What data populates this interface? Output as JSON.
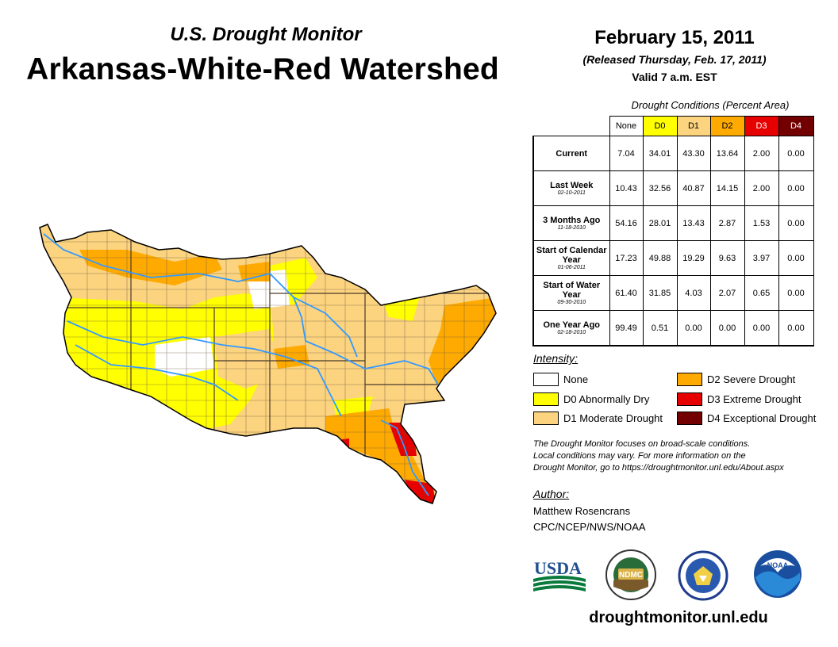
{
  "header": {
    "subtitle": "U.S. Drought Monitor",
    "title": "Arkansas-White-Red Watershed",
    "date": "February 15, 2011",
    "released": "(Released Thursday, Feb. 17, 2011)",
    "valid": "Valid 7 a.m. EST"
  },
  "table": {
    "caption": "Drought Conditions (Percent Area)",
    "columns": [
      "None",
      "D0",
      "D1",
      "D2",
      "D3",
      "D4"
    ],
    "rows": [
      {
        "label": "Current",
        "date": "",
        "values": [
          "7.04",
          "34.01",
          "43.30",
          "13.64",
          "2.00",
          "0.00"
        ]
      },
      {
        "label": "Last Week",
        "date": "02-10-2011",
        "values": [
          "10.43",
          "32.56",
          "40.87",
          "14.15",
          "2.00",
          "0.00"
        ]
      },
      {
        "label": "3 Months Ago",
        "date": "11-18-2010",
        "values": [
          "54.16",
          "28.01",
          "13.43",
          "2.87",
          "1.53",
          "0.00"
        ]
      },
      {
        "label": "Start of Calendar Year",
        "date": "01-06-2011",
        "values": [
          "17.23",
          "49.88",
          "19.29",
          "9.63",
          "3.97",
          "0.00"
        ]
      },
      {
        "label": "Start of Water Year",
        "date": "09-30-2010",
        "values": [
          "61.40",
          "31.85",
          "4.03",
          "2.07",
          "0.65",
          "0.00"
        ]
      },
      {
        "label": "One Year Ago",
        "date": "02-18-2010",
        "values": [
          "99.49",
          "0.51",
          "0.00",
          "0.00",
          "0.00",
          "0.00"
        ]
      }
    ]
  },
  "legend": {
    "title": "Intensity:",
    "items": [
      {
        "label": "None",
        "color": "#ffffff"
      },
      {
        "label": "D0 Abnormally Dry",
        "color": "#ffff00"
      },
      {
        "label": "D1 Moderate Drought",
        "color": "#fcd37f"
      },
      {
        "label": "D2 Severe Drought",
        "color": "#ffaa00"
      },
      {
        "label": "D3 Extreme Drought",
        "color": "#e60000"
      },
      {
        "label": "D4 Exceptional Drought",
        "color": "#730000"
      }
    ]
  },
  "note": {
    "line1": "The Drought Monitor focuses on broad-scale conditions.",
    "line2": "Local conditions may vary. For more information on the",
    "line3": "Drought Monitor, go to https://droughtmonitor.unl.edu/About.aspx"
  },
  "author": {
    "title": "Author:",
    "name": "Matthew Rosencrans",
    "org": "CPC/NCEP/NWS/NOAA"
  },
  "logos": {
    "usda": "USDA",
    "ndmc": "NDMC",
    "noaa": "NOAA"
  },
  "footer": {
    "url": "droughtmonitor.unl.edu"
  },
  "colors": {
    "none": "#ffffff",
    "d0": "#ffff00",
    "d1": "#fcd37f",
    "d2": "#ffaa00",
    "d3": "#e60000",
    "d4": "#730000",
    "river": "#3399ff",
    "county_line": "#6e5a46"
  }
}
